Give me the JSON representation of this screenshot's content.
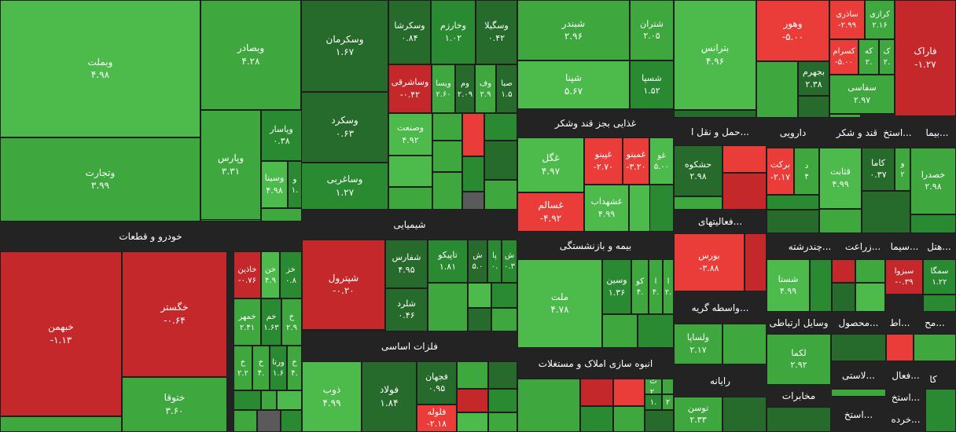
{
  "colors": {
    "background": "#232323",
    "strong_green": "#2a8a32",
    "green": "#3ea83f",
    "light_green": "#4cbb4c",
    "dark_green": "#276b2c",
    "red": "#c4282a",
    "light_red": "#ea3d3a"
  },
  "chart_data": {
    "type": "heatmap",
    "sectors": [
      {
        "label": "خودرو و قطعات"
      },
      {
        "label": "شیمیایی"
      },
      {
        "label": "فلزات اساسی"
      },
      {
        "label": "غذایی بجز قند وشکر"
      },
      {
        "label": "بیمه و بازنشستگی"
      },
      {
        "label": "انبوه سازی املاک و مستغلات"
      },
      {
        "label": "حمل و نقل ا..."
      },
      {
        "label": "دارویی"
      },
      {
        "label": "قند و شکر"
      },
      {
        "label": "استخ..."
      },
      {
        "label": "بیما..."
      },
      {
        "label": "فعالیتهای..."
      },
      {
        "label": "واسطه گریه..."
      },
      {
        "label": "رایانه"
      },
      {
        "label": "چندرشته..."
      },
      {
        "label": "زراعت..."
      },
      {
        "label": "سیما..."
      },
      {
        "label": "هتل..."
      },
      {
        "label": "وسایل ارتباطی"
      },
      {
        "label": "محصول..."
      },
      {
        "label": "اط..."
      },
      {
        "label": "مح..."
      },
      {
        "label": "مخابرات"
      },
      {
        "label": "لاستی..."
      },
      {
        "label": "استخ..."
      },
      {
        "label": "فعال..."
      },
      {
        "label": "کا"
      },
      {
        "label": "استخ..."
      },
      {
        "label": "خرده..."
      }
    ],
    "tiles": [
      {
        "name": "وبملت",
        "value": "۴.۹۸",
        "change": 4.98
      },
      {
        "name": "وتجارت",
        "value": "۳.۹۹",
        "change": 3.99
      },
      {
        "name": "وبصادر",
        "value": "۴.۲۸",
        "change": 4.28
      },
      {
        "name": "وپارس",
        "value": "۳.۳۱",
        "change": 3.31
      },
      {
        "name": "وپاسار",
        "value": "۰.۳۸",
        "change": 0.38
      },
      {
        "name": "وسینا",
        "value": "۴.۹۸",
        "change": 4.98
      },
      {
        "name": "و",
        "value": "۱.",
        "change": 1
      },
      {
        "name": "وسکرمان",
        "value": "۱.۶۷",
        "change": 1.67
      },
      {
        "name": "وسکرد",
        "value": "۰.۶۳",
        "change": 0.63
      },
      {
        "name": "وساغربی",
        "value": "۱.۲۷",
        "change": 1.27
      },
      {
        "name": "وسکرشا",
        "value": "۰.۸۴",
        "change": 0.84
      },
      {
        "name": "وخارزم",
        "value": "۱.۰۲",
        "change": 1.02
      },
      {
        "name": "وسگیلا",
        "value": "۰.۴۲",
        "change": 0.42
      },
      {
        "name": "وساشرقی",
        "value": "-۰.۴۲",
        "change": -0.42
      },
      {
        "name": "ویسا",
        "value": "۲.۶۰",
        "change": 2.6
      },
      {
        "name": "وم",
        "value": "۲.۰۹",
        "change": 2.09
      },
      {
        "name": "وف",
        "value": "۲.۹",
        "change": 2.9
      },
      {
        "name": "صبا",
        "value": "۱.۵",
        "change": 1.5
      },
      {
        "name": "وصنعت",
        "value": "۴.۹۲",
        "change": 4.92
      },
      {
        "name": "شبندر",
        "value": "۲.۹۶",
        "change": 2.96
      },
      {
        "name": "شتران",
        "value": "۲.۰۵",
        "change": 2.05
      },
      {
        "name": "شپنا",
        "value": "۵.۶۷",
        "change": 5.67
      },
      {
        "name": "شسپا",
        "value": "۱.۵۲",
        "change": 1.52
      },
      {
        "name": "بترانس",
        "value": "۴.۹۶",
        "change": 4.96
      },
      {
        "name": "وهور",
        "value": "-۵.۰۰",
        "change": -5.0
      },
      {
        "name": "ساذری",
        "value": "-۲.۹۹",
        "change": -2.99
      },
      {
        "name": "کرازی",
        "value": "۲.۱۶",
        "change": 2.16
      },
      {
        "name": "کسرام",
        "value": "-۵.۰۰",
        "change": -5.0
      },
      {
        "name": "که",
        "value": "۲.",
        "change": 2
      },
      {
        "name": "ک",
        "value": "۲.",
        "change": 2
      },
      {
        "name": "بجهرم",
        "value": "۲.۳۸",
        "change": 2.38
      },
      {
        "name": "سفاسی",
        "value": "۲.۹۷",
        "change": 2.97
      },
      {
        "name": "فاراک",
        "value": "-۱.۲۷",
        "change": -1.27
      },
      {
        "name": "غگل",
        "value": "۴.۹۷",
        "change": 4.97
      },
      {
        "name": "غپینو",
        "value": "-۲.۷۰",
        "change": -2.7
      },
      {
        "name": "غمینو",
        "value": "-۳.۲۰",
        "change": -3.2
      },
      {
        "name": "غو",
        "value": "۵.۰۰",
        "change": 5.0
      },
      {
        "name": "غسالم",
        "value": "-۴.۹۲",
        "change": -4.92
      },
      {
        "name": "غشهداب",
        "value": "۴.۹۹",
        "change": 4.99
      },
      {
        "name": "حشکوه",
        "value": "۲.۹۸",
        "change": 2.98
      },
      {
        "name": "برکت",
        "value": "-۲.۱۷",
        "change": -2.17
      },
      {
        "name": "د",
        "value": "۴",
        "change": 4
      },
      {
        "name": "قثابت",
        "value": "۴.۹۹",
        "change": 4.99
      },
      {
        "name": "کاما",
        "value": "۰.۳۷",
        "change": 0.37
      },
      {
        "name": "و",
        "value": "۲",
        "change": 2
      },
      {
        "name": "خصدرا",
        "value": "۲.۹۸",
        "change": 2.98
      },
      {
        "name": "خگستر",
        "value": "-۰.۶۴",
        "change": -0.64
      },
      {
        "name": "خبهمن",
        "value": "-۱.۱۳",
        "change": -1.13
      },
      {
        "name": "ختوقا",
        "value": "۳.۶۰",
        "change": 3.6
      },
      {
        "name": "خاذین",
        "value": "-۰.۷۶",
        "change": -0.76
      },
      {
        "name": "خن",
        "value": "۴.۹",
        "change": 4.9
      },
      {
        "name": "خز",
        "value": "۰.۸",
        "change": 0.8
      },
      {
        "name": "خمهر",
        "value": "۲.۴۱",
        "change": 2.41
      },
      {
        "name": "خم",
        "value": "۱.۶۳",
        "change": 1.63
      },
      {
        "name": "خ",
        "value": "۲.۹",
        "change": 2.9
      },
      {
        "name": "خ",
        "value": "۲.۲",
        "change": 2.2
      },
      {
        "name": "خ",
        "value": "۴.",
        "change": 4
      },
      {
        "name": "ورنا",
        "value": "۱.۶",
        "change": 1.6
      },
      {
        "name": "خ",
        "value": "۴.",
        "change": 4
      },
      {
        "name": "شپترول",
        "value": "-۰.۲۰",
        "change": -0.2
      },
      {
        "name": "شفارس",
        "value": "۴.۹۵",
        "change": 4.95
      },
      {
        "name": "تاپیکو",
        "value": "۱.۸۱",
        "change": 1.81
      },
      {
        "name": "ش",
        "value": "۵.۰",
        "change": 5.0
      },
      {
        "name": "پا",
        "value": "۰.",
        "change": 0
      },
      {
        "name": "ش",
        "value": "۰.۳",
        "change": 0.3
      },
      {
        "name": "شلرد",
        "value": "۰.۴۶",
        "change": 0.46
      },
      {
        "name": "ذوب",
        "value": "۴.۹۹",
        "change": 4.99
      },
      {
        "name": "فولاد",
        "value": "۱.۸۴",
        "change": 1.84
      },
      {
        "name": "فجهان",
        "value": "۰.۹۵",
        "change": 0.95
      },
      {
        "name": "فلوله",
        "value": "-۲.۱۸",
        "change": -2.18
      },
      {
        "name": "ملت",
        "value": "۴.۷۸",
        "change": 4.78
      },
      {
        "name": "وسین",
        "value": "۱.۳۶",
        "change": 1.36
      },
      {
        "name": "کو",
        "value": "۴.",
        "change": 4
      },
      {
        "name": "ا",
        "value": "۴.",
        "change": 4
      },
      {
        "name": "ا",
        "value": "۲.",
        "change": 2
      },
      {
        "name": "بورس",
        "value": "-۳.۸۸",
        "change": -3.88
      },
      {
        "name": "ولساپا",
        "value": "۲.۱۷",
        "change": 2.17
      },
      {
        "name": "توسن",
        "value": "۲.۳۳",
        "change": 2.33
      },
      {
        "name": "ث",
        "value": "۲.",
        "change": 2
      },
      {
        "name": "۱.",
        "value": "",
        "change": 1
      },
      {
        "name": "۲",
        "value": "",
        "change": 2
      },
      {
        "name": "شستا",
        "value": "۴.۹۹",
        "change": 4.99
      },
      {
        "name": "سبزوا",
        "value": "-۰.۳۹",
        "change": -0.39
      },
      {
        "name": "سمگا",
        "value": "۱.۲۲",
        "change": 1.22
      },
      {
        "name": "لکما",
        "value": "۲.۹۲",
        "change": 2.92
      }
    ]
  }
}
